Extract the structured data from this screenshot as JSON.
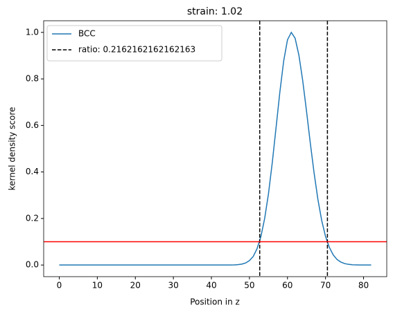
{
  "chart_data": {
    "type": "line",
    "title": "strain: 1.02",
    "x_label": "Position in z",
    "y_label": "kernel density score",
    "x": [
      0,
      10,
      20,
      30,
      40,
      44,
      45,
      46,
      47,
      48,
      49,
      50,
      51,
      52,
      53,
      54,
      55,
      56,
      57,
      58,
      59,
      60,
      61,
      62,
      63,
      64,
      65,
      66,
      67,
      68,
      69,
      70,
      71,
      72,
      73,
      74,
      75,
      76,
      77,
      78,
      79,
      80,
      81,
      82
    ],
    "series": [
      {
        "name": "BCC",
        "color": "#1f77b4",
        "values": [
          0,
          0,
          0,
          0,
          0,
          0,
          0.0002,
          0.0006,
          0.0016,
          0.0039,
          0.0088,
          0.019,
          0.037,
          0.07,
          0.122,
          0.2,
          0.306,
          0.44,
          0.591,
          0.744,
          0.877,
          0.968,
          1,
          0.975,
          0.902,
          0.793,
          0.662,
          0.524,
          0.395,
          0.282,
          0.191,
          0.123,
          0.076,
          0.044,
          0.024,
          0.013,
          0.0063,
          0.003,
          0.0013,
          0.0006,
          0.0002,
          0,
          0,
          0
        ]
      }
    ],
    "vlines": {
      "name": "ratio: 0.2162162162162163",
      "color": "#000000",
      "values": [
        52.7,
        70.5
      ]
    },
    "hline": {
      "value": 0.1,
      "color": "#ff0000"
    },
    "xlim": [
      -4.1,
      86.1
    ],
    "ylim": [
      -0.05,
      1.05
    ],
    "xticks": [
      0,
      10,
      20,
      30,
      40,
      50,
      60,
      70,
      80
    ],
    "yticks": [
      {
        "value": 0,
        "label": "0.0"
      },
      {
        "value": 0.2,
        "label": "0.2"
      },
      {
        "value": 0.4,
        "label": "0.4"
      },
      {
        "value": 0.6,
        "label": "0.6"
      },
      {
        "value": 0.8,
        "label": "0.8"
      },
      {
        "value": 1,
        "label": "1.0"
      }
    ],
    "legend": "upper left"
  }
}
